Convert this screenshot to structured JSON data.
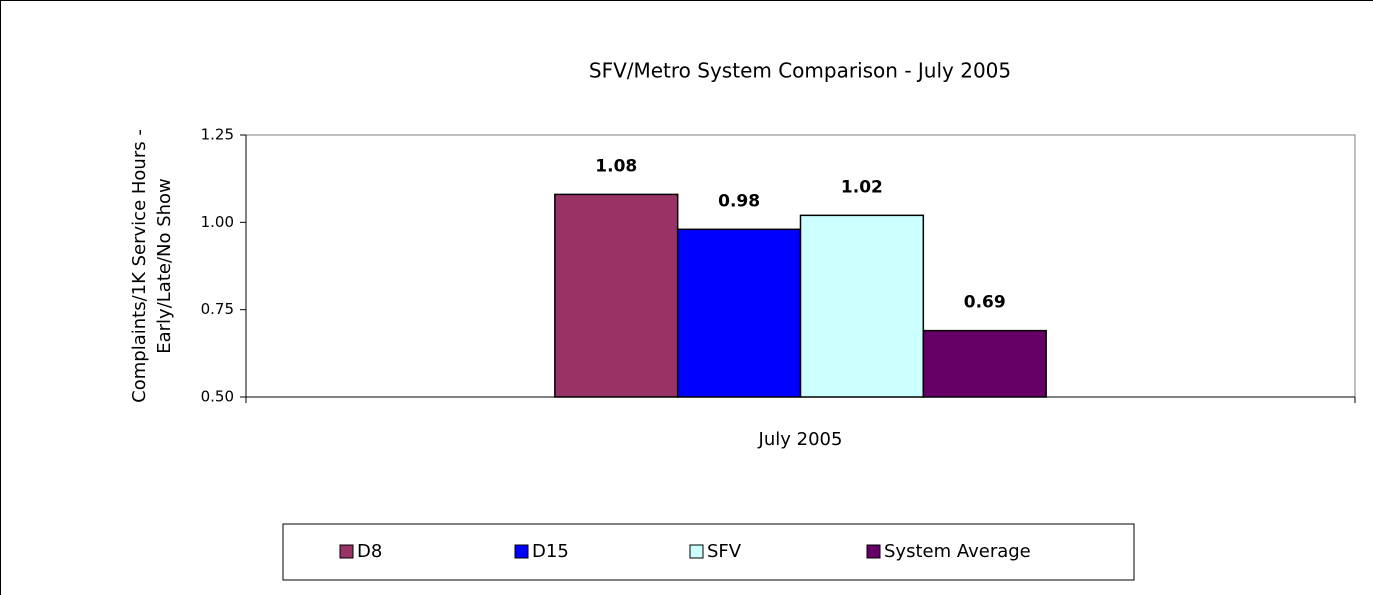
{
  "chart_data": {
    "type": "bar",
    "title": "SFV/Metro System Comparison - July 2005",
    "ylabel": [
      "Complaints/1K Service Hours -",
      "Early/Late/No Show"
    ],
    "categories": [
      "July 2005"
    ],
    "series": [
      {
        "name": "D8",
        "color": "#993366",
        "values": [
          1.08
        ]
      },
      {
        "name": "D15",
        "color": "#0000ff",
        "values": [
          0.98
        ]
      },
      {
        "name": "SFV",
        "color": "#ccffff",
        "values": [
          1.02
        ]
      },
      {
        "name": "System Average",
        "color": "#660066",
        "values": [
          0.69
        ]
      }
    ],
    "ylim": [
      0.5,
      1.25
    ],
    "yticks": [
      {
        "value": 0.5,
        "label": "0.50"
      },
      {
        "value": 0.75,
        "label": "0.75"
      },
      {
        "value": 1.0,
        "label": "1.00"
      },
      {
        "value": 1.25,
        "label": "1.25"
      }
    ],
    "grid": false,
    "legend": "bottom"
  }
}
